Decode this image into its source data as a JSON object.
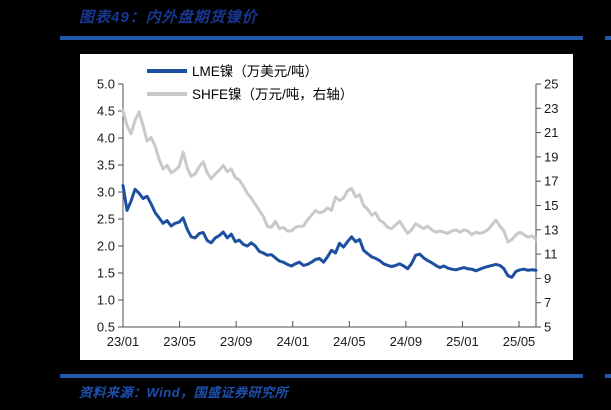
{
  "page": {
    "title": "图表49：内外盘期货镍价",
    "source_note": "资料来源：Wind，国盛证券研究所",
    "colors": {
      "background": "#000000",
      "panel_background": "#ffffff",
      "title_text": "#17378f",
      "source_text": "#1e4fae",
      "rule": "#2257ac"
    }
  },
  "chart_data": {
    "type": "line",
    "title": "图表49：内外盘期货镍价",
    "grid": false,
    "legend_position": "top-left-stacked",
    "axis_line_color": "#4d4d4d",
    "axis_text_color": "#1a1a1a",
    "x_axis": {
      "tick_labels": [
        "23/01",
        "23/05",
        "23/09",
        "24/01",
        "24/05",
        "24/09",
        "25/01",
        "25/05"
      ],
      "tick_months": [
        0,
        4,
        8,
        12,
        16,
        20,
        24,
        28
      ],
      "range_months": [
        0,
        29.2
      ]
    },
    "left_axis": {
      "title": "LME镍 万美元/吨",
      "min": 0.5,
      "max": 5.0,
      "ticks": [
        "5.0",
        "4.5",
        "4.0",
        "3.5",
        "3.0",
        "2.5",
        "2.0",
        "1.5",
        "1.0",
        "0.5"
      ]
    },
    "right_axis": {
      "title": "SHFE镍 万元/吨",
      "min": 5,
      "max": 25,
      "ticks": [
        "25",
        "23",
        "21",
        "19",
        "17",
        "15",
        "13",
        "11",
        "9",
        "7",
        "5"
      ]
    },
    "series": [
      {
        "name": "LME镍（万美元/吨）",
        "axis": "left",
        "color": "#1d4fa1",
        "line_width": 3,
        "values": [
          3.12,
          2.66,
          2.83,
          3.05,
          2.98,
          2.88,
          2.92,
          2.78,
          2.62,
          2.52,
          2.42,
          2.47,
          2.37,
          2.42,
          2.44,
          2.52,
          2.31,
          2.17,
          2.15,
          2.23,
          2.25,
          2.1,
          2.06,
          2.15,
          2.19,
          2.26,
          2.15,
          2.22,
          2.08,
          2.11,
          2.03,
          2.0,
          2.06,
          2.0,
          1.9,
          1.87,
          1.83,
          1.84,
          1.78,
          1.72,
          1.7,
          1.66,
          1.63,
          1.67,
          1.7,
          1.64,
          1.66,
          1.7,
          1.75,
          1.77,
          1.7,
          1.8,
          1.92,
          1.87,
          2.05,
          1.98,
          2.08,
          2.17,
          2.08,
          2.12,
          1.92,
          1.86,
          1.8,
          1.77,
          1.73,
          1.67,
          1.64,
          1.62,
          1.64,
          1.67,
          1.63,
          1.58,
          1.68,
          1.83,
          1.85,
          1.78,
          1.73,
          1.69,
          1.64,
          1.6,
          1.63,
          1.59,
          1.57,
          1.56,
          1.58,
          1.6,
          1.58,
          1.57,
          1.54,
          1.57,
          1.6,
          1.62,
          1.64,
          1.66,
          1.64,
          1.58,
          1.45,
          1.42,
          1.53,
          1.56,
          1.57,
          1.55,
          1.56,
          1.55
        ]
      },
      {
        "name": "SHFE镍（万元/吨，右轴）",
        "axis": "right",
        "color": "#c9c9c9",
        "line_width": 3,
        "values": [
          22.8,
          21.6,
          20.9,
          22.0,
          22.7,
          21.6,
          20.3,
          20.6,
          19.9,
          18.8,
          18.0,
          18.3,
          17.7,
          17.9,
          18.2,
          19.4,
          18.1,
          17.4,
          17.6,
          18.2,
          18.6,
          17.7,
          17.2,
          17.6,
          17.9,
          18.3,
          17.8,
          18.0,
          17.3,
          17.1,
          16.6,
          16.0,
          15.6,
          15.1,
          14.6,
          14.1,
          13.3,
          13.2,
          13.7,
          13.1,
          13.2,
          12.9,
          12.9,
          13.2,
          13.3,
          13.3,
          13.8,
          14.2,
          14.6,
          14.4,
          14.5,
          14.8,
          14.6,
          15.7,
          15.4,
          15.6,
          16.2,
          16.4,
          15.7,
          15.9,
          15.0,
          14.7,
          14.2,
          14.4,
          13.8,
          13.6,
          13.2,
          13.1,
          13.4,
          13.7,
          13.2,
          12.7,
          13.0,
          13.5,
          13.3,
          13.1,
          13.3,
          13.0,
          12.8,
          12.9,
          12.8,
          12.7,
          12.9,
          13.0,
          12.8,
          13.0,
          12.9,
          12.6,
          12.8,
          12.7,
          12.8,
          13.0,
          13.4,
          13.8,
          13.3,
          12.9,
          12.0,
          12.2,
          12.6,
          12.8,
          12.6,
          12.4,
          12.5,
          12.2
        ]
      }
    ]
  }
}
